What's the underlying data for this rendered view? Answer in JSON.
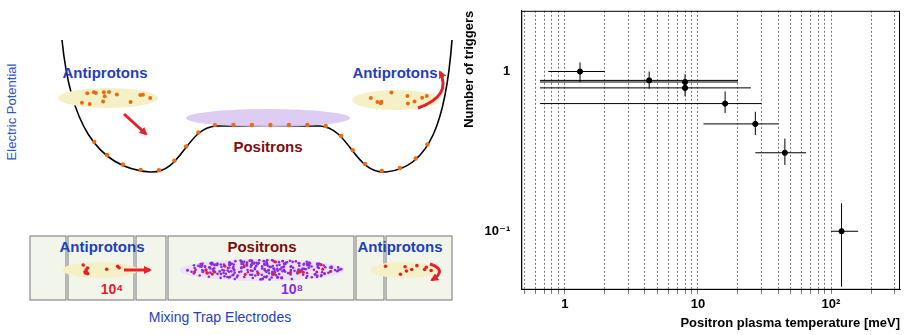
{
  "diagram": {
    "potential_panel": {
      "axis_label": "Electric Potential",
      "labels": [
        "Antiprotons",
        "Positrons",
        "Antiprotons"
      ]
    },
    "electrode_panel": {
      "labels": [
        "Antiprotons",
        "Positrons",
        "Antiprotons"
      ],
      "counts": [
        "10⁴",
        "10⁸"
      ],
      "caption": "Mixing Trap Electrodes"
    }
  },
  "chart_data": {
    "type": "scatter",
    "x_label": "Positron plasma temperature [meV]",
    "y_label": "Number of triggers",
    "log": true,
    "grid": "x",
    "color": "#000000",
    "marker": "circle",
    "xlim": [
      0.47,
      330
    ],
    "ylim": [
      0.043,
      2.4
    ],
    "xticks": [
      1,
      10,
      {
        "value": 100,
        "label": "10²"
      }
    ],
    "yticks": [
      {
        "value": 0.1,
        "label": "10⁻¹"
      },
      1
    ],
    "x": [
      1.3,
      4.3,
      8,
      8,
      16,
      27,
      45,
      120
    ],
    "values": [
      1.0,
      0.88,
      0.86,
      0.79,
      0.63,
      0.47,
      0.31,
      0.1
    ],
    "x_low": [
      0.75,
      0.65,
      0.65,
      0.65,
      0.65,
      11,
      27,
      100
    ],
    "x_high": [
      2.0,
      20,
      20,
      25,
      30,
      40,
      65,
      160
    ],
    "y_low": [
      0.86,
      0.78,
      0.76,
      0.7,
      0.55,
      0.4,
      0.26,
      0.045
    ],
    "y_high": [
      1.14,
      1.0,
      0.96,
      0.88,
      0.75,
      0.56,
      0.38,
      0.15
    ]
  }
}
